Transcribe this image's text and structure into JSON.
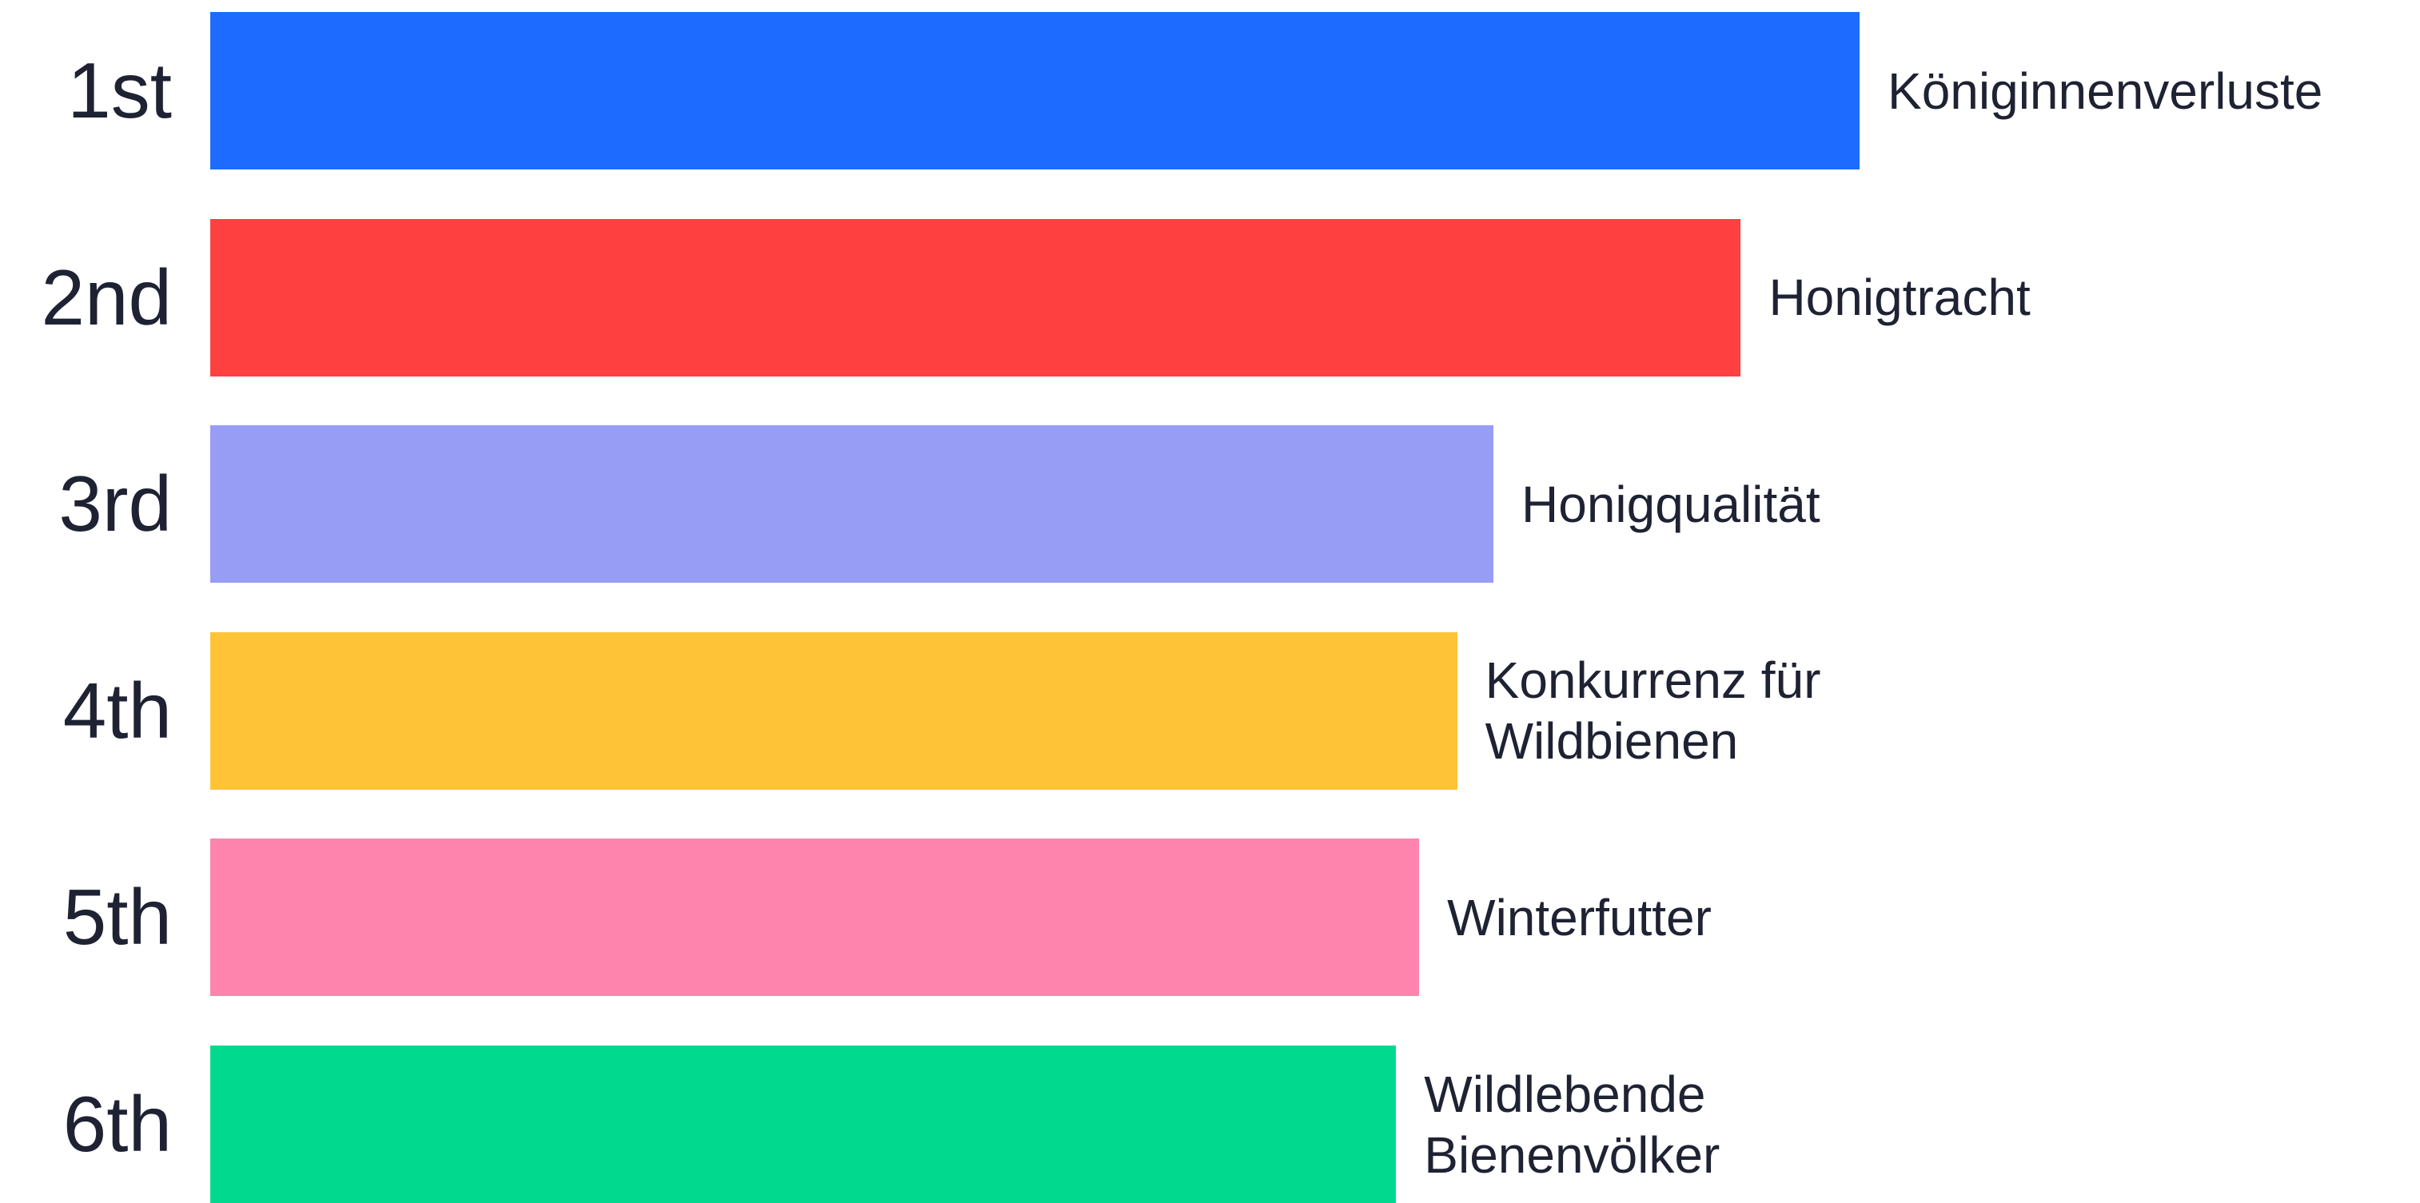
{
  "chart_data": {
    "type": "bar",
    "orientation": "horizontal",
    "ranks": [
      "1st",
      "2nd",
      "3rd",
      "4th",
      "5th",
      "6th"
    ],
    "categories": [
      "Königinnenverluste",
      "Honigtracht",
      "Honigqualität",
      "Konkurrenz für Wildbienen",
      "Winterfutter",
      "Wildlebende Bienenvölker"
    ],
    "values": [
      100,
      92.8,
      77.8,
      75.6,
      73.3,
      71.9
    ],
    "colors": [
      "#1d6cff",
      "#ff4040",
      "#979cf5",
      "#fec336",
      "#fe83ad",
      "#00d98e"
    ],
    "xlim": [
      0,
      100
    ]
  }
}
